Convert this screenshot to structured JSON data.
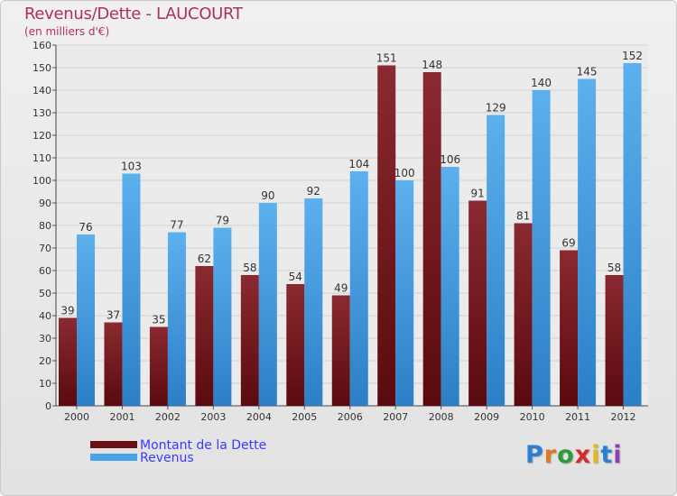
{
  "chart_data": {
    "type": "bar",
    "title": "Revenus/Dette - LAUCOURT",
    "subtitle": "(en milliers d'€)",
    "categories": [
      "2000",
      "2001",
      "2002",
      "2003",
      "2004",
      "2005",
      "2006",
      "2007",
      "2008",
      "2009",
      "2010",
      "2011",
      "2012"
    ],
    "series": [
      {
        "name": "Montant de la Dette",
        "color": "#6b0f14",
        "values": [
          39,
          37,
          35,
          62,
          58,
          54,
          49,
          151,
          148,
          91,
          81,
          69,
          58
        ]
      },
      {
        "name": "Revenus",
        "color": "#4aa3e6",
        "values": [
          76,
          103,
          77,
          79,
          90,
          92,
          104,
          100,
          106,
          129,
          140,
          145,
          152
        ]
      }
    ],
    "ylim": [
      0,
      160
    ],
    "yticks": [
      0,
      10,
      20,
      30,
      40,
      50,
      60,
      70,
      80,
      90,
      100,
      110,
      120,
      130,
      140,
      150,
      160
    ],
    "grid": true,
    "legend_position": "bottom-left"
  },
  "logo": {
    "letters": [
      "P",
      "r",
      "o",
      "x",
      "i",
      "t",
      "i"
    ],
    "colors": [
      "#2a7fd4",
      "#e07a1f",
      "#2a9d3a",
      "#d62b2b",
      "#e3b81b",
      "#2a7fd4",
      "#8b3fb5"
    ]
  }
}
